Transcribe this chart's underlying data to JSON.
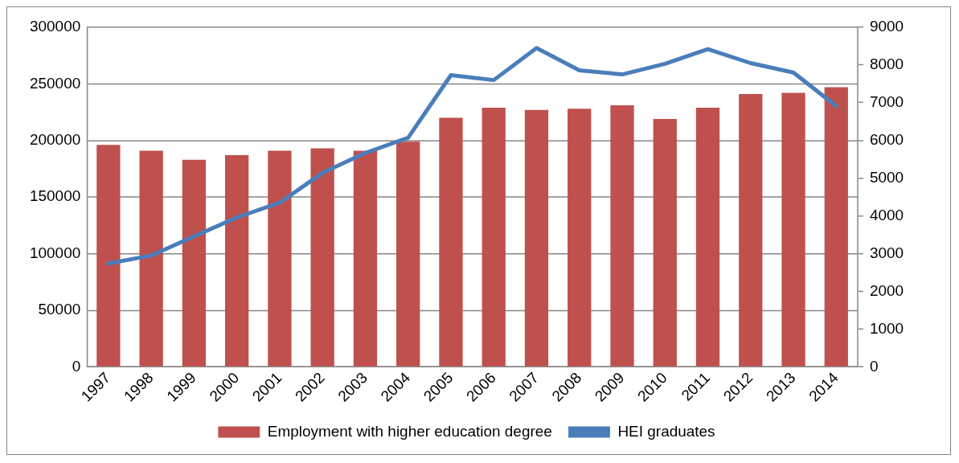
{
  "chart_data": {
    "type": "bar",
    "categories": [
      "1997",
      "1998",
      "1999",
      "2000",
      "2001",
      "2002",
      "2003",
      "2004",
      "2005",
      "2006",
      "2007",
      "2008",
      "2009",
      "2010",
      "2011",
      "2012",
      "2013",
      "2014"
    ],
    "series": [
      {
        "name": "Employment with higher education degree",
        "color": "#c0504d",
        "values": [
          196000,
          191000,
          183000,
          187000,
          191000,
          193000,
          191000,
          199000,
          220000,
          229000,
          227000,
          228000,
          231000,
          219000,
          229000,
          241000,
          242000,
          247000
        ]
      },
      {
        "name": "HEI graduates",
        "type": "line",
        "axis": "y2",
        "color": "#4a7ebb",
        "values": [
          2740,
          2950,
          3460,
          3960,
          4350,
          5140,
          5670,
          6070,
          7730,
          7600,
          8450,
          7860,
          7750,
          8030,
          8420,
          8050,
          7800,
          6910
        ]
      }
    ],
    "ylim": [
      0,
      300000
    ],
    "yticks": [
      0,
      50000,
      100000,
      150000,
      200000,
      250000,
      300000
    ],
    "y2lim": [
      0,
      9000
    ],
    "y2ticks": [
      0,
      1000,
      2000,
      3000,
      4000,
      5000,
      6000,
      7000,
      8000,
      9000
    ],
    "grid": "y",
    "legend": "bottom",
    "marker": "none",
    "line_style": "solid"
  }
}
